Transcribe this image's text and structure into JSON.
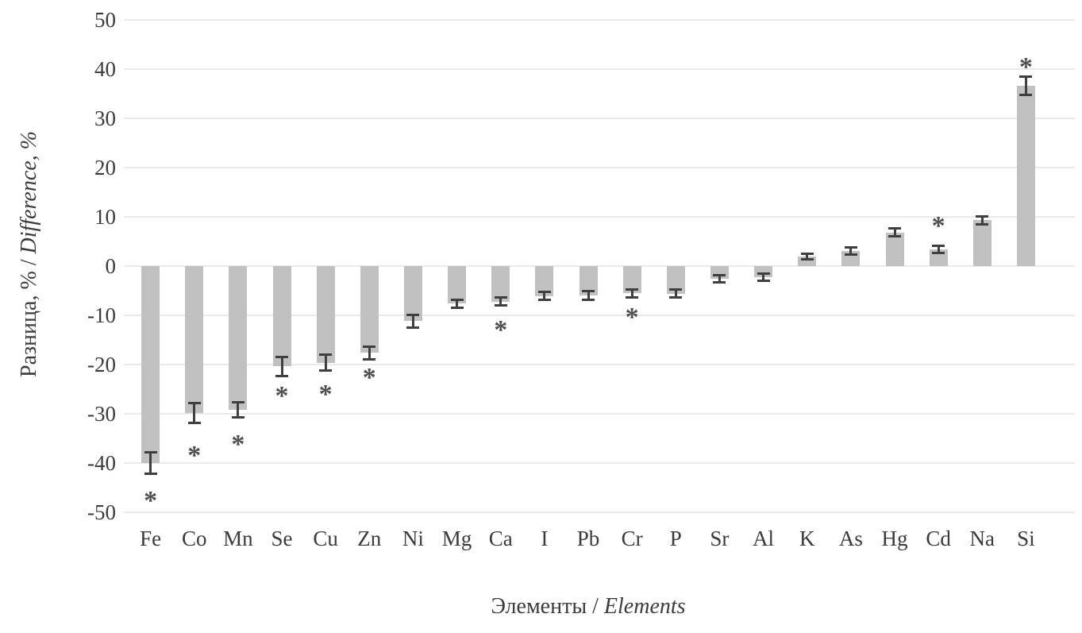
{
  "chart_data": {
    "type": "bar",
    "title": "",
    "xlabel": {
      "ru": "Элементы",
      "sep": " / ",
      "en": "Elements"
    },
    "ylabel": {
      "ru": "Разница, %",
      "sep": " / ",
      "en": "Difference, %"
    },
    "ylim": [
      -50,
      50
    ],
    "yticks": [
      50,
      40,
      30,
      20,
      10,
      0,
      -10,
      -20,
      -30,
      -40,
      -50
    ],
    "grid": true,
    "legend": "none",
    "categories": [
      "Fe",
      "Co",
      "Mn",
      "Se",
      "Cu",
      "Zn",
      "Ni",
      "Mg",
      "Ca",
      "I",
      "Pb",
      "Cr",
      "P",
      "Sr",
      "Al",
      "K",
      "As",
      "Hg",
      "Cd",
      "Na",
      "Si"
    ],
    "series": [
      {
        "name": "Difference",
        "values": [
          -40.0,
          -29.8,
          -29.2,
          -20.4,
          -19.6,
          -17.6,
          -11.2,
          -7.6,
          -7.2,
          -6.1,
          -5.9,
          -5.5,
          -5.6,
          -2.6,
          -2.3,
          1.9,
          3.1,
          6.8,
          3.4,
          9.3,
          36.6
        ],
        "errors": [
          2.2,
          2.0,
          1.6,
          2.0,
          1.6,
          1.3,
          1.3,
          0.8,
          0.8,
          0.8,
          0.9,
          0.8,
          0.8,
          0.7,
          0.7,
          0.6,
          0.7,
          0.8,
          0.7,
          0.8,
          1.9
        ],
        "asterisks": [
          -46.4,
          -37.2,
          -35.0,
          -25.2,
          -24.9,
          -21.5,
          null,
          null,
          -11.7,
          null,
          null,
          -9.2,
          null,
          null,
          null,
          null,
          null,
          null,
          9.4,
          null,
          41.6
        ]
      }
    ],
    "significance_marker": "*",
    "colors": {
      "bar": "#c1c1c1",
      "grid": "#eaeaea",
      "error": "#3f3f3f",
      "asterisk": "#4e4e4e",
      "text": "#3b3b3b"
    }
  }
}
